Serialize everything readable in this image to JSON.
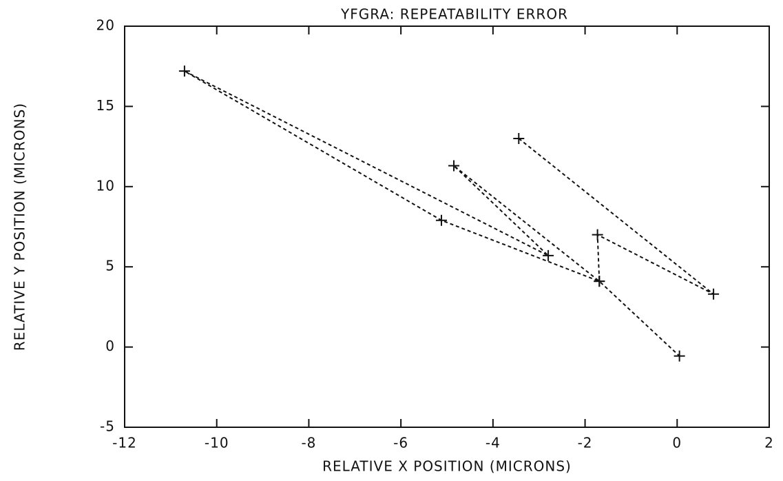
{
  "chart_data": {
    "type": "line",
    "title": "YFGRA: REPEATABILITY ERROR",
    "x_label": "RELATIVE X POSITION (MICRONS)",
    "y_label": "RELATIVE Y POSITION (MICRONS)",
    "x": [
      -3.44,
      0.79,
      -1.73,
      -1.69,
      -5.12,
      -10.7,
      -2.8,
      -4.85,
      -1.69,
      0.05
    ],
    "values": [
      13.0,
      3.3,
      7.0,
      4.1,
      7.9,
      17.2,
      5.7,
      11.3,
      4.1,
      -0.56
    ],
    "color": "#111111",
    "xlim": [
      -12,
      2
    ],
    "xticks": [
      -12,
      -10,
      -8,
      -6,
      -4,
      -2,
      0,
      2
    ],
    "ylim": [
      -5,
      20
    ],
    "yticks": [
      -5,
      0,
      5,
      10,
      15,
      20
    ]
  }
}
